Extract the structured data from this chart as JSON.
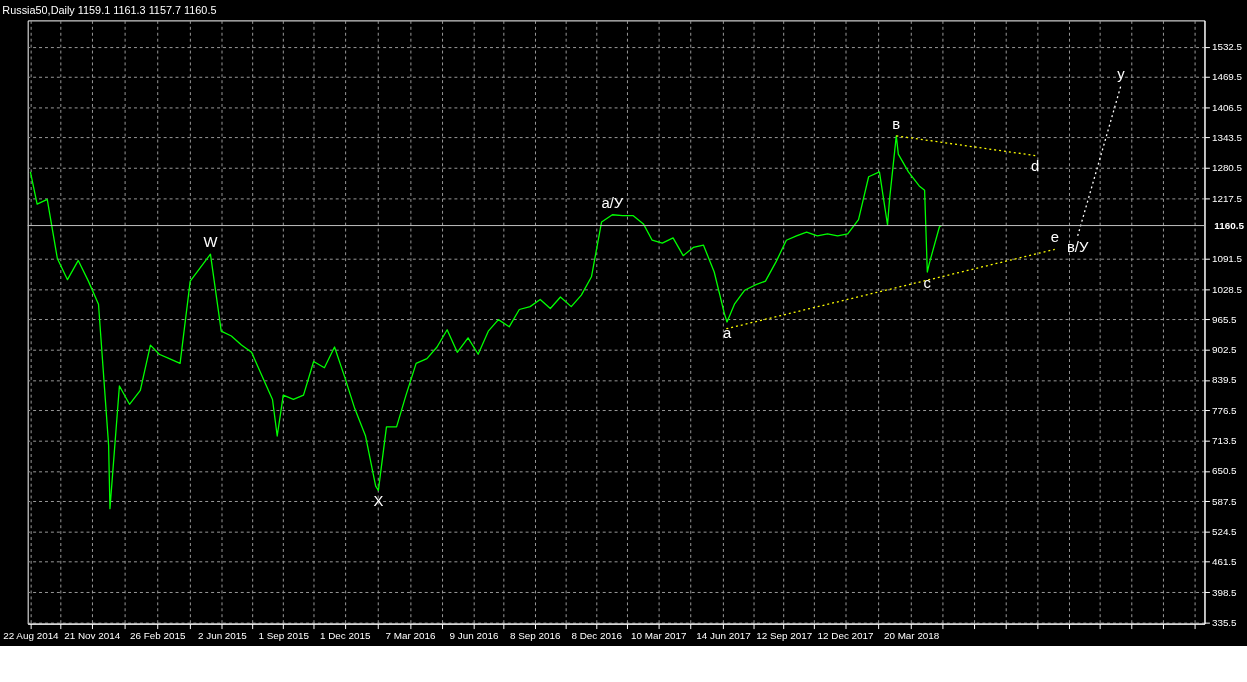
{
  "chart_data": {
    "type": "line",
    "title": "Russia50,Daily  1159.1 1161.3 1157.7 1160.5",
    "x": [
      "2014-08-22",
      "2014-09-01",
      "2014-09-16",
      "2014-10-01",
      "2014-10-16",
      "2014-11-01",
      "2014-11-16",
      "2014-12-01",
      "2014-12-16",
      "2014-12-18",
      "2015-01-01",
      "2015-01-16",
      "2015-02-01",
      "2015-02-16",
      "2015-03-01",
      "2015-03-16",
      "2015-04-01",
      "2015-04-16",
      "2015-05-01",
      "2015-05-16",
      "2015-06-01",
      "2015-06-16",
      "2015-07-01",
      "2015-07-16",
      "2015-08-01",
      "2015-08-16",
      "2015-08-23",
      "2015-09-01",
      "2015-09-16",
      "2015-10-01",
      "2015-10-16",
      "2015-11-01",
      "2015-11-16",
      "2015-12-01",
      "2015-12-16",
      "2016-01-01",
      "2016-01-16",
      "2016-01-20",
      "2016-02-01",
      "2016-02-16",
      "2016-03-01",
      "2016-03-16",
      "2016-04-01",
      "2016-04-16",
      "2016-05-01",
      "2016-05-16",
      "2016-06-01",
      "2016-06-16",
      "2016-07-01",
      "2016-07-16",
      "2016-08-01",
      "2016-08-16",
      "2016-09-01",
      "2016-09-16",
      "2016-10-01",
      "2016-10-16",
      "2016-11-01",
      "2016-11-16",
      "2016-12-01",
      "2016-12-16",
      "2017-01-01",
      "2017-01-16",
      "2017-02-01",
      "2017-02-16",
      "2017-03-01",
      "2017-03-16",
      "2017-04-01",
      "2017-04-16",
      "2017-05-01",
      "2017-05-16",
      "2017-06-01",
      "2017-06-16",
      "2017-06-20",
      "2017-07-01",
      "2017-07-16",
      "2017-08-01",
      "2017-08-16",
      "2017-09-01",
      "2017-09-16",
      "2017-10-01",
      "2017-10-16",
      "2017-11-01",
      "2017-11-16",
      "2017-12-01",
      "2017-12-16",
      "2018-01-01",
      "2018-01-16",
      "2018-02-01",
      "2018-02-13",
      "2018-02-16",
      "2018-02-26",
      "2018-03-01",
      "2018-03-16",
      "2018-04-01",
      "2018-04-09",
      "2018-04-13",
      "2018-04-16",
      "2018-05-01",
      "2018-05-04"
    ],
    "series": [
      {
        "color": "#00ff00",
        "line_style": "solid",
        "values": [
          1272,
          1205,
          1215,
          1092,
          1048,
          1088,
          1045,
          997,
          704,
          572,
          827,
          789,
          818,
          912,
          893,
          884,
          874,
          1045,
          1073,
          1101,
          941,
          931,
          912,
          897,
          846,
          799,
          723,
          808,
          799,
          808,
          878,
          865,
          908,
          846,
          780,
          723,
          619,
          610,
          742,
          742,
          808,
          874,
          884,
          908,
          944,
          897,
          927,
          893,
          941,
          965,
          950,
          986,
          992,
          1007,
          988,
          1012,
          992,
          1016,
          1054,
          1168,
          1183,
          1181,
          1181,
          1164,
          1130,
          1124,
          1135,
          1098,
          1115,
          1120,
          1064,
          978,
          960,
          997,
          1026,
          1037,
          1045,
          1086,
          1130,
          1139,
          1147,
          1139,
          1143,
          1139,
          1143,
          1173,
          1262,
          1272,
          1162,
          1215,
          1347,
          1309,
          1272,
          1243,
          1234,
          1064,
          1082,
          1158,
          1160.5
        ]
      },
      {
        "color": "#ffff00",
        "line_style": "dotted",
        "x": [
          "2017-06-19",
          "2018-10-19"
        ],
        "values": [
          946,
          1111
        ]
      },
      {
        "color": "#ffff00",
        "line_style": "dotted",
        "x": [
          "2018-02-26",
          "2018-09-20"
        ],
        "values": [
          1347,
          1306
        ]
      },
      {
        "color": "#ffffff",
        "line_style": "dotted",
        "x": [
          "2018-11-22",
          "2019-01-25"
        ],
        "values": [
          1139,
          1451
        ]
      }
    ],
    "annotations": [
      {
        "text": "W",
        "x": "2015-05-16",
        "y": 1101
      },
      {
        "text": "X",
        "x": "2016-01-20",
        "y": 610
      },
      {
        "text": "a/У",
        "x": "2017-01-01",
        "y": 1183
      },
      {
        "text": "a",
        "x": "2017-06-20",
        "y": 960
      },
      {
        "text": "в",
        "x": "2018-02-26",
        "y": 1347
      },
      {
        "text": "c",
        "x": "2018-04-13",
        "y": 1064
      },
      {
        "text": "d",
        "x": "2018-09-20",
        "y": 1306
      },
      {
        "text": "e",
        "x": "2018-10-19",
        "y": 1111
      },
      {
        "text": "в/У",
        "x": "2018-11-22",
        "y": 1139
      },
      {
        "text": "у",
        "x": "2019-01-25",
        "y": 1451
      }
    ],
    "ref_lines": [
      {
        "axis": "y",
        "value": 1160.5,
        "label": "1160.5",
        "color": "#c0c0c0"
      }
    ],
    "xlim": [
      "2014-08-18",
      "2019-05-29"
    ],
    "ylim": [
      333,
      1587
    ],
    "xticks": [
      {
        "value": "2014-08-22",
        "label": "22 Aug 2014"
      },
      {
        "value": "2014-10-06",
        "label": null
      },
      {
        "value": "2014-11-21",
        "label": "21 Nov 2014"
      },
      {
        "value": "2015-01-08",
        "label": null
      },
      {
        "value": "2015-02-26",
        "label": "26 Feb 2015"
      },
      {
        "value": "2015-04-15",
        "label": null
      },
      {
        "value": "2015-06-02",
        "label": "2 Jun 2015"
      },
      {
        "value": "2015-07-17",
        "label": null
      },
      {
        "value": "2015-09-01",
        "label": "1 Sep 2015"
      },
      {
        "value": "2015-10-16",
        "label": null
      },
      {
        "value": "2015-12-01",
        "label": "1 Dec 2015"
      },
      {
        "value": "2016-01-19",
        "label": null
      },
      {
        "value": "2016-03-07",
        "label": "7 Mar 2016"
      },
      {
        "value": "2016-04-23",
        "label": null
      },
      {
        "value": "2016-06-09",
        "label": "9 Jun 2016"
      },
      {
        "value": "2016-07-24",
        "label": null
      },
      {
        "value": "2016-09-08",
        "label": "8 Sep 2016"
      },
      {
        "value": "2016-10-23",
        "label": null
      },
      {
        "value": "2016-12-08",
        "label": "8 Dec 2016"
      },
      {
        "value": "2017-01-23",
        "label": null
      },
      {
        "value": "2017-03-10",
        "label": "10 Mar 2017"
      },
      {
        "value": "2017-04-27",
        "label": null
      },
      {
        "value": "2017-06-14",
        "label": "14 Jun 2017"
      },
      {
        "value": "2017-07-29",
        "label": null
      },
      {
        "value": "2017-09-12",
        "label": "12 Sep 2017"
      },
      {
        "value": "2017-10-27",
        "label": null
      },
      {
        "value": "2017-12-12",
        "label": "12 Dec 2017"
      },
      {
        "value": "2018-01-30",
        "label": null
      },
      {
        "value": "2018-03-20",
        "label": "20 Mar 2018"
      },
      {
        "value": "2018-05-06",
        "label": null
      },
      {
        "value": "2018-06-22",
        "label": null
      },
      {
        "value": "2018-08-07",
        "label": null
      },
      {
        "value": "2018-09-23",
        "label": null
      },
      {
        "value": "2018-11-09",
        "label": null
      },
      {
        "value": "2018-12-25",
        "label": null
      },
      {
        "value": "2019-02-10",
        "label": null
      },
      {
        "value": "2019-03-29",
        "label": null
      },
      {
        "value": "2019-05-14",
        "label": null
      }
    ],
    "yticks": [
      335.5,
      398.5,
      461.5,
      524.5,
      587.5,
      650.5,
      713.5,
      776.5,
      839.5,
      902.5,
      965.5,
      1028.5,
      1091.5,
      1217.5,
      1280.5,
      1343.5,
      1406.5,
      1469.5,
      1532.5
    ],
    "grid": true,
    "marker": "none"
  }
}
